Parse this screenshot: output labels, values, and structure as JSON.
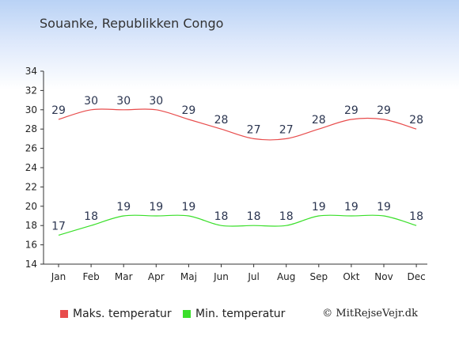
{
  "title": "Souanke, Republikken Congo",
  "credit": "© MitRejseVejr.dk",
  "chart_data": {
    "type": "line",
    "title": "Souanke, Republikken Congo",
    "categories": [
      "Jan",
      "Feb",
      "Mar",
      "Apr",
      "Maj",
      "Jun",
      "Jul",
      "Aug",
      "Sep",
      "Okt",
      "Nov",
      "Dec"
    ],
    "series": [
      {
        "name": "Maks. temperatur",
        "color": "#e84c4c",
        "values": [
          29,
          30,
          30,
          30,
          29,
          28,
          27,
          27,
          28,
          29,
          29,
          28
        ]
      },
      {
        "name": "Min. temperatur",
        "color": "#3adf2a",
        "values": [
          17,
          18,
          19,
          19,
          19,
          18,
          18,
          18,
          19,
          19,
          19,
          18
        ]
      }
    ],
    "ylim": [
      14,
      34
    ],
    "yticks": [
      14,
      16,
      18,
      20,
      22,
      24,
      26,
      28,
      30,
      32,
      34
    ],
    "grid": false,
    "legend": "bottom"
  }
}
